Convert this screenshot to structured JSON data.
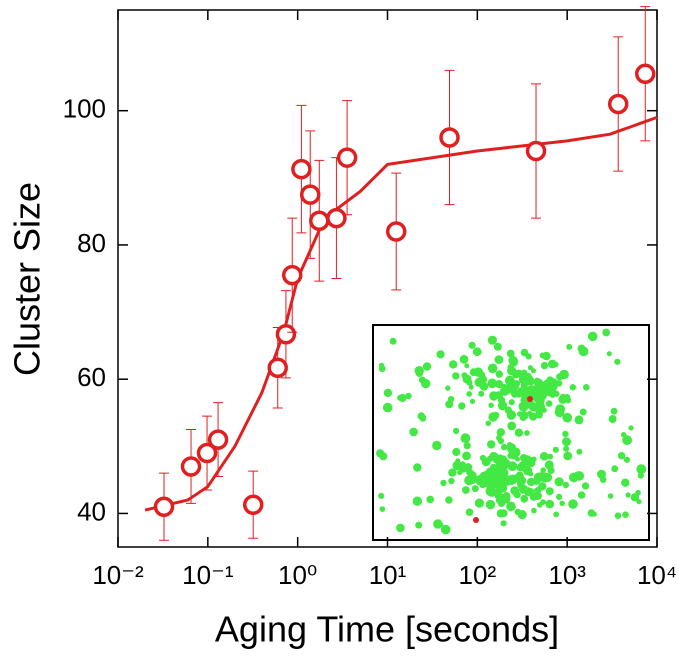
{
  "chart_data": {
    "type": "scatter",
    "xlabel": "Aging Time [seconds]",
    "ylabel": "Cluster Size",
    "xscale": "log",
    "xlim": [
      0.01,
      10000
    ],
    "ylim": [
      35,
      115
    ],
    "xticks": [
      {
        "value": 0.01,
        "label": "10⁻²"
      },
      {
        "value": 0.1,
        "label": "10⁻¹"
      },
      {
        "value": 1,
        "label": "10⁰"
      },
      {
        "value": 10,
        "label": "10¹"
      },
      {
        "value": 100,
        "label": "10²"
      },
      {
        "value": 1000,
        "label": "10³"
      },
      {
        "value": 10000,
        "label": "10⁴"
      }
    ],
    "yticks": [
      40,
      60,
      80,
      100
    ],
    "series": [
      {
        "type": "scatter",
        "color": "#e02020",
        "x": [
          0.0325,
          0.065,
          0.098,
          0.13,
          0.32,
          0.6,
          0.74,
          0.87,
          1.1,
          1.38,
          1.74,
          2.7,
          3.55,
          12.5,
          49,
          450,
          3700,
          7400
        ],
        "values": [
          41,
          47,
          49,
          51,
          41.3,
          61.7,
          66.7,
          75.5,
          91.3,
          87.5,
          83.6,
          84,
          93,
          82,
          96,
          94,
          101,
          105.5
        ],
        "errors": [
          5,
          5.5,
          5.5,
          5.5,
          5,
          6,
          6.5,
          8.5,
          9.5,
          9.5,
          9,
          9,
          8.5,
          8.7,
          10,
          10,
          10,
          10
        ]
      },
      {
        "type": "line",
        "color": "#e02020",
        "x": [
          0.02,
          0.06,
          0.1,
          0.2,
          0.4,
          0.7,
          1,
          2,
          5,
          10,
          100,
          1000,
          3000,
          10000
        ],
        "values": [
          40.5,
          42,
          44,
          50,
          58,
          67,
          75,
          84,
          88,
          92,
          94,
          95.5,
          96.5,
          99
        ]
      }
    ]
  }
}
